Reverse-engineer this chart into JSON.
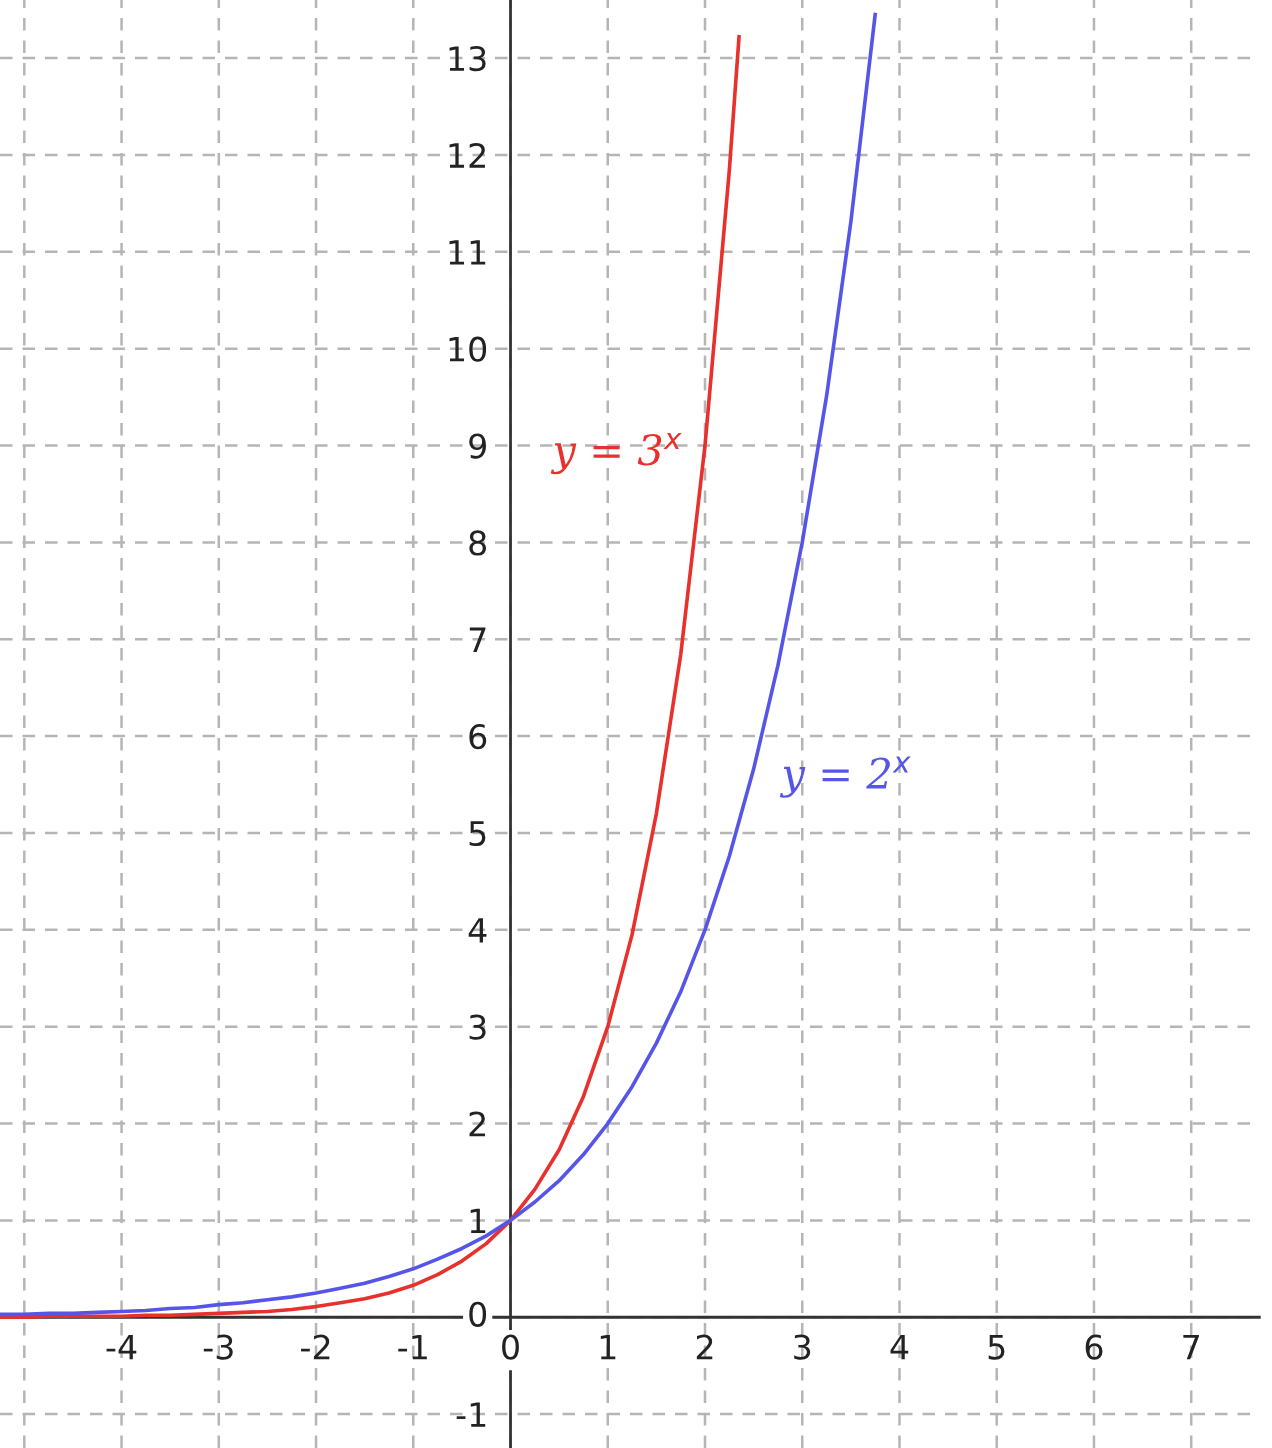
{
  "chart_data": {
    "type": "line",
    "xlim": [
      -5.25,
      7.7
    ],
    "ylim": [
      -1.35,
      13.6
    ],
    "xticks": [
      {
        "value": -5,
        "label": null
      },
      -4,
      -3,
      -2,
      -1,
      0,
      1,
      2,
      3,
      4,
      5,
      6,
      7
    ],
    "yticks": [
      -1,
      0,
      1,
      2,
      3,
      4,
      5,
      6,
      7,
      8,
      9,
      10,
      11,
      12,
      13
    ],
    "grid": true,
    "line_style": "solid",
    "series": [
      {
        "name": "y = 3$^{x}$",
        "color": "#e8302c",
        "x": [
          -5.25,
          -5,
          -4.75,
          -4.5,
          -4.25,
          -4,
          -3.75,
          -3.5,
          -3.25,
          -3,
          -2.75,
          -2.5,
          -2.25,
          -2,
          -1.75,
          -1.5,
          -1.25,
          -1,
          -0.75,
          -0.5,
          -0.25,
          0,
          0.25,
          0.5,
          0.75,
          1,
          1.25,
          1.5,
          1.75,
          2,
          2.25,
          2.35
        ],
        "values": [
          0.0,
          0.0,
          0.01,
          0.01,
          0.01,
          0.01,
          0.02,
          0.02,
          0.03,
          0.04,
          0.05,
          0.06,
          0.08,
          0.11,
          0.15,
          0.19,
          0.25,
          0.33,
          0.44,
          0.58,
          0.76,
          1,
          1.32,
          1.73,
          2.28,
          3,
          3.95,
          5.2,
          6.84,
          9,
          11.84,
          13.22
        ]
      },
      {
        "name": "y = 2$^{x}$",
        "color": "#5555e8",
        "x": [
          -5.25,
          -5,
          -4.75,
          -4.5,
          -4.25,
          -4,
          -3.75,
          -3.5,
          -3.25,
          -3,
          -2.75,
          -2.5,
          -2.25,
          -2,
          -1.75,
          -1.5,
          -1.25,
          -1,
          -0.75,
          -0.5,
          -0.25,
          0,
          0.25,
          0.5,
          0.75,
          1,
          1.25,
          1.5,
          1.75,
          2,
          2.25,
          2.5,
          2.75,
          3,
          3.25,
          3.5,
          3.75
        ],
        "values": [
          0.03,
          0.03,
          0.04,
          0.04,
          0.05,
          0.06,
          0.07,
          0.09,
          0.1,
          0.13,
          0.15,
          0.18,
          0.21,
          0.25,
          0.3,
          0.35,
          0.42,
          0.5,
          0.6,
          0.71,
          0.84,
          1,
          1.19,
          1.41,
          1.68,
          2,
          2.38,
          2.83,
          3.36,
          4,
          4.76,
          5.66,
          6.73,
          8,
          9.51,
          11.31,
          13.45
        ]
      }
    ]
  }
}
